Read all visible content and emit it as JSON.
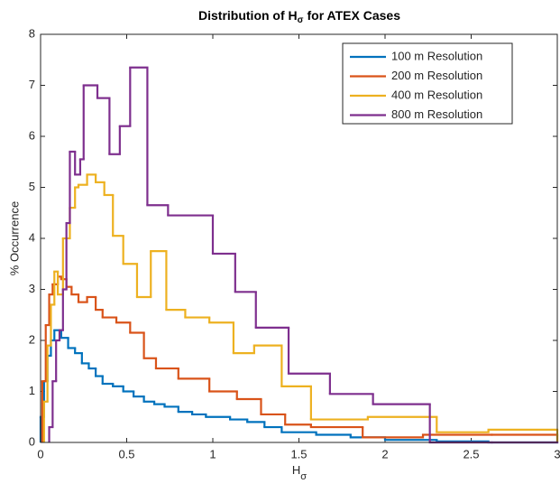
{
  "chart_data": {
    "type": "histogram",
    "title_main": "Distribution of H",
    "title_sub": "σ",
    "title_rest": "for ATEX Cases",
    "xlabel_main": "H",
    "xlabel_sub": "σ",
    "ylabel": "% Occurrence",
    "xlim": [
      0,
      3
    ],
    "ylim": [
      0,
      8
    ],
    "xticks": [
      0,
      0.5,
      1,
      1.5,
      2,
      2.5,
      3
    ],
    "yticks": [
      0,
      1,
      2,
      3,
      4,
      5,
      6,
      7,
      8
    ],
    "legend": "upper right",
    "series": [
      {
        "name": "100 m Resolution",
        "color": "#0072bd",
        "bins": [
          0,
          0.02,
          0.04,
          0.06,
          0.08,
          0.12,
          0.16,
          0.2,
          0.24,
          0.28,
          0.32,
          0.36,
          0.42,
          0.48,
          0.54,
          0.6,
          0.66,
          0.72,
          0.8,
          0.88,
          0.96,
          1.1,
          1.2,
          1.3,
          1.4,
          1.6,
          1.8,
          2.0,
          2.3,
          2.6,
          3.0
        ],
        "values": [
          0.5,
          1.2,
          1.7,
          2.0,
          2.2,
          2.05,
          1.85,
          1.75,
          1.55,
          1.45,
          1.3,
          1.15,
          1.1,
          1.0,
          0.9,
          0.8,
          0.75,
          0.7,
          0.6,
          0.55,
          0.5,
          0.45,
          0.4,
          0.3,
          0.2,
          0.15,
          0.1,
          0.05,
          0.02,
          0
        ]
      },
      {
        "name": "200 m Resolution",
        "color": "#d95319",
        "bins": [
          0.01,
          0.03,
          0.05,
          0.07,
          0.1,
          0.12,
          0.15,
          0.18,
          0.22,
          0.27,
          0.32,
          0.36,
          0.44,
          0.52,
          0.6,
          0.67,
          0.8,
          0.98,
          1.14,
          1.28,
          1.42,
          1.57,
          1.87,
          2.22,
          2.62,
          3.0
        ],
        "values": [
          1.2,
          2.3,
          2.9,
          3.1,
          3.25,
          3.2,
          3.05,
          2.9,
          2.75,
          2.85,
          2.6,
          2.45,
          2.35,
          2.15,
          1.65,
          1.45,
          1.25,
          1.0,
          0.85,
          0.55,
          0.35,
          0.3,
          0.1,
          0.15,
          0.15
        ]
      },
      {
        "name": "400 m Resolution",
        "color": "#edb120",
        "bins": [
          0.02,
          0.04,
          0.06,
          0.08,
          0.1,
          0.13,
          0.17,
          0.2,
          0.22,
          0.27,
          0.32,
          0.37,
          0.42,
          0.48,
          0.56,
          0.64,
          0.73,
          0.84,
          0.98,
          1.12,
          1.24,
          1.4,
          1.57,
          1.9,
          2.3,
          2.6,
          3.0
        ],
        "values": [
          0.8,
          1.9,
          2.7,
          3.35,
          2.9,
          4.0,
          4.6,
          5.0,
          5.05,
          5.25,
          5.1,
          4.85,
          4.05,
          3.5,
          2.85,
          3.75,
          2.6,
          2.45,
          2.35,
          1.75,
          1.9,
          1.1,
          0.45,
          0.5,
          0.2,
          0.25
        ]
      },
      {
        "name": "800 m Resolution",
        "color": "#7e2f8e",
        "bins": [
          0.05,
          0.07,
          0.09,
          0.11,
          0.13,
          0.15,
          0.17,
          0.2,
          0.23,
          0.25,
          0.33,
          0.4,
          0.46,
          0.52,
          0.62,
          0.74,
          1.0,
          1.13,
          1.25,
          1.44,
          1.68,
          1.93,
          2.26,
          2.62,
          3.0
        ],
        "values": [
          0.3,
          1.2,
          2.0,
          2.2,
          3.0,
          4.3,
          5.7,
          5.25,
          5.55,
          7.0,
          6.75,
          5.65,
          6.2,
          7.35,
          4.65,
          4.45,
          3.7,
          2.95,
          2.25,
          1.35,
          0.95,
          0.75,
          0,
          0
        ]
      }
    ]
  }
}
